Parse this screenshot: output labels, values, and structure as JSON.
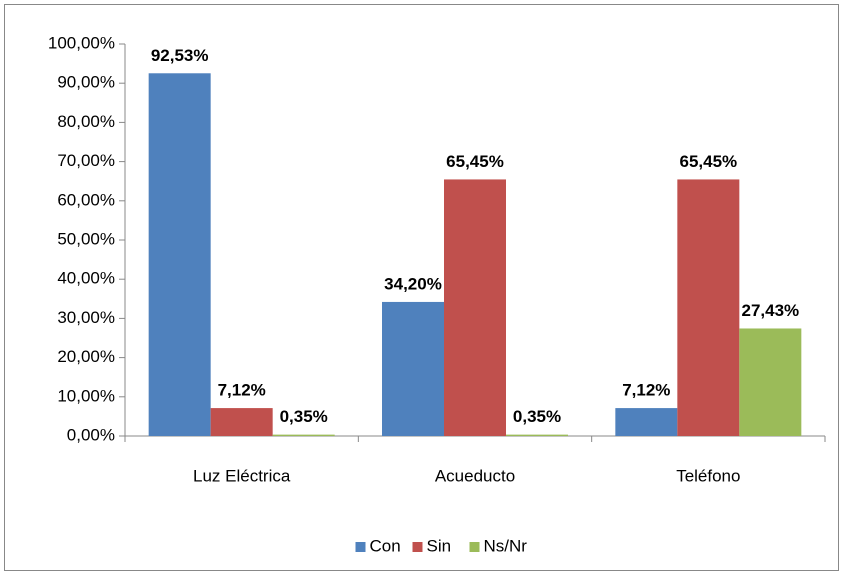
{
  "chart_data": {
    "type": "bar",
    "categories": [
      "Luz Eléctrica",
      "Acueducto",
      "Teléfono"
    ],
    "series": [
      {
        "name": "Con",
        "color": "#4f81bd",
        "values": [
          92.53,
          34.2,
          7.12
        ],
        "value_labels": [
          "92,53%",
          "34,20%",
          "7,12%"
        ]
      },
      {
        "name": "Sin",
        "color": "#c0504d",
        "values": [
          7.12,
          65.45,
          65.45
        ],
        "value_labels": [
          "7,12%",
          "65,45%",
          "65,45%"
        ]
      },
      {
        "name": "Ns/Nr",
        "color": "#9bbb59",
        "values": [
          0.35,
          0.35,
          27.43
        ],
        "value_labels": [
          "0,35%",
          "0,35%",
          "27,43%"
        ]
      }
    ],
    "ylim": [
      0,
      100
    ],
    "yticks": [
      {
        "value": 0,
        "label": "0,00%"
      },
      {
        "value": 10,
        "label": "10,00%"
      },
      {
        "value": 20,
        "label": "20,00%"
      },
      {
        "value": 30,
        "label": "30,00%"
      },
      {
        "value": 40,
        "label": "40,00%"
      },
      {
        "value": 50,
        "label": "50,00%"
      },
      {
        "value": 60,
        "label": "60,00%"
      },
      {
        "value": 70,
        "label": "70,00%"
      },
      {
        "value": 80,
        "label": "80,00%"
      },
      {
        "value": 90,
        "label": "90,00%"
      },
      {
        "value": 100,
        "label": "100,00%"
      }
    ],
    "grid": false,
    "legend": "bottom"
  }
}
